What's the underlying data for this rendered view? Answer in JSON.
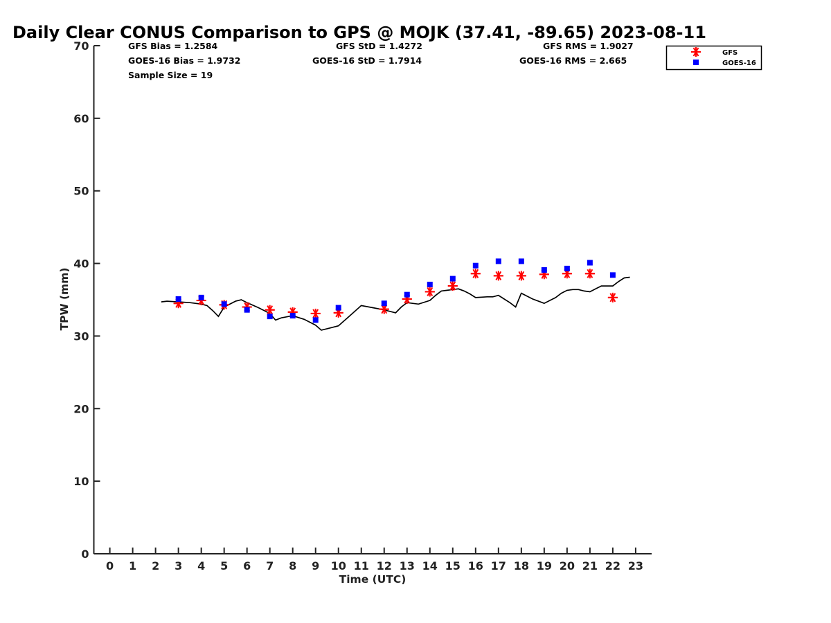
{
  "chart_data": {
    "type": "line",
    "title": "Daily Clear CONUS Comparison to GPS @ MOJK (37.41, -89.65) 2023-08-11",
    "xlabel": "Time (UTC)",
    "ylabel": "TPW (mm)",
    "xlim": [
      -0.7,
      23.7
    ],
    "ylim": [
      0,
      70
    ],
    "xticks": [
      0,
      1,
      2,
      3,
      4,
      5,
      6,
      7,
      8,
      9,
      10,
      11,
      12,
      13,
      14,
      15,
      16,
      17,
      18,
      19,
      20,
      21,
      22,
      23
    ],
    "yticks": [
      0,
      10,
      20,
      30,
      40,
      50,
      60,
      70
    ],
    "grid": false,
    "legend_position": "top-right",
    "stats": {
      "gfs_bias": "GFS Bias = 1.2584",
      "goes_bias": "GOES-16 Bias = 1.9732",
      "sample_size": "Sample Size = 19",
      "gfs_std": "GFS StD = 1.4272",
      "goes_std": "GOES-16 StD = 1.7914",
      "gfs_rms": "GFS RMS = 1.9027",
      "goes_rms": "GOES-16 RMS = 2.665"
    },
    "series": [
      {
        "label": "GPS",
        "style": "line",
        "color": "#000000",
        "x": [
          2.25,
          2.5,
          3,
          3.5,
          4,
          4.25,
          4.5,
          4.75,
          5,
          5.5,
          5.75,
          6,
          6.5,
          7,
          7.25,
          7.5,
          8,
          8.5,
          9,
          9.25,
          9.5,
          10,
          10.5,
          11,
          11.5,
          12,
          12.25,
          12.5,
          12.75,
          13,
          13.5,
          14,
          14.25,
          14.5,
          14.75,
          15,
          15.25,
          15.5,
          15.75,
          16,
          16.5,
          16.75,
          17,
          17.25,
          17.5,
          17.75,
          18,
          18.5,
          18.75,
          19,
          19.25,
          19.5,
          19.75,
          20,
          20.25,
          20.5,
          20.75,
          21,
          21.25,
          21.5,
          21.75,
          22,
          22.25,
          22.5,
          22.75
        ],
        "y": [
          34.7,
          34.8,
          34.7,
          34.6,
          34.4,
          34.2,
          33.5,
          32.7,
          34.0,
          34.8,
          35.0,
          34.6,
          33.9,
          33.1,
          32.2,
          32.5,
          32.8,
          32.3,
          31.5,
          30.8,
          31.0,
          31.4,
          32.8,
          34.2,
          33.9,
          33.6,
          33.4,
          33.2,
          34.0,
          34.6,
          34.4,
          34.9,
          35.6,
          36.2,
          36.3,
          36.4,
          36.5,
          36.2,
          35.8,
          35.3,
          35.4,
          35.4,
          35.6,
          35.1,
          34.6,
          34.0,
          35.9,
          35.1,
          34.8,
          34.5,
          34.9,
          35.3,
          35.9,
          36.3,
          36.4,
          36.4,
          36.2,
          36.1,
          36.5,
          36.9,
          36.9,
          36.9,
          37.5,
          38.0,
          38.1
        ]
      },
      {
        "name": "GFS",
        "style": "asterisk",
        "color": "#ff0000",
        "x": [
          3,
          4,
          5,
          6,
          7,
          8,
          9,
          10,
          12,
          13,
          14,
          15,
          16,
          17,
          18,
          19,
          20,
          21,
          22
        ],
        "y": [
          34.5,
          34.9,
          34.3,
          34.0,
          33.6,
          33.3,
          33.1,
          33.2,
          33.7,
          35.1,
          36.1,
          36.9,
          38.6,
          38.3,
          38.3,
          38.5,
          38.6,
          38.6,
          35.3
        ]
      },
      {
        "name": "GOES-16",
        "style": "square",
        "color": "#0000ff",
        "x": [
          3,
          4,
          5,
          6,
          7,
          8,
          9,
          10,
          12,
          13,
          14,
          15,
          16,
          17,
          18,
          19,
          20,
          21,
          22
        ],
        "y": [
          35.1,
          35.3,
          34.4,
          33.6,
          32.7,
          32.8,
          32.2,
          33.9,
          34.5,
          35.7,
          37.1,
          37.9,
          39.7,
          40.3,
          40.3,
          39.1,
          39.3,
          40.1,
          38.4
        ]
      }
    ]
  }
}
